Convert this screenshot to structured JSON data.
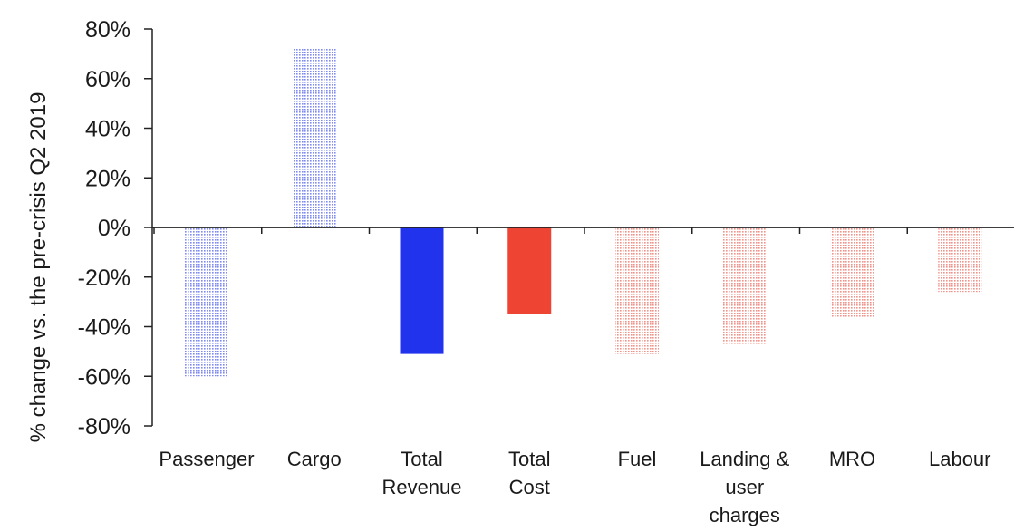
{
  "chart_data": {
    "type": "bar",
    "ylabel": "% change vs. the pre-crisis Q2 2019",
    "ylim": [
      -80,
      80
    ],
    "yticks": [
      80,
      60,
      40,
      20,
      0,
      -20,
      -40,
      -60,
      -80
    ],
    "ytick_labels": [
      "80%",
      "60%",
      "40%",
      "20%",
      "0%",
      "-20%",
      "-40%",
      "-60%",
      "-80%"
    ],
    "categories": [
      [
        "Passenger"
      ],
      [
        "Cargo"
      ],
      [
        "Total",
        "Revenue"
      ],
      [
        "Total",
        "Cost"
      ],
      [
        "Fuel"
      ],
      [
        "Landing &",
        "user",
        "charges"
      ],
      [
        "MRO"
      ],
      [
        "Labour"
      ]
    ],
    "values": [
      -60,
      72,
      -51,
      -35,
      -51,
      -47,
      -36,
      -26
    ],
    "bar_styles": [
      "dotted-blue",
      "dotted-blue",
      "solid-blue",
      "solid-red",
      "dotted-red",
      "dotted-red",
      "dotted-red",
      "dotted-red"
    ],
    "colors": {
      "blue": "#2233ee",
      "red": "#ee4433",
      "dotted_blue": "#8c96f2",
      "dotted_red": "#f29c92",
      "axis": "#222222"
    }
  }
}
